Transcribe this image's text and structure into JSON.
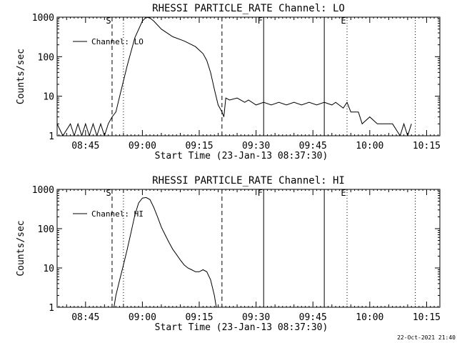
{
  "footer": {
    "timestamp": "22-Oct-2021 21:40"
  },
  "chart_data": [
    {
      "type": "line",
      "title": "RHESSI PARTICLE_RATE Channel: LO",
      "xlabel": "Start Time (23-Jan-13 08:37:30)",
      "ylabel": "Counts/sec",
      "yscale": "log",
      "ylim": [
        1,
        1000
      ],
      "xlim_minutes_after_start": [
        0,
        101
      ],
      "x_ticks": [
        "08:45",
        "09:00",
        "09:15",
        "09:30",
        "09:45",
        "10:00",
        "10:15"
      ],
      "y_ticks": [
        "1",
        "10",
        "100",
        "1000"
      ],
      "legend": {
        "label": "Channel: LO",
        "position": "top-left"
      },
      "markers": [
        {
          "label": "S",
          "time": "08:52",
          "style": "dashed"
        },
        {
          "label": "",
          "time": "08:55",
          "style": "dotted"
        },
        {
          "label": "",
          "time": "09:21",
          "style": "dashed"
        },
        {
          "label": "F",
          "time": "09:32",
          "style": "solid"
        },
        {
          "label": "",
          "time": "09:48",
          "style": "solid"
        },
        {
          "label": "E",
          "time": "09:54",
          "style": "dotted"
        },
        {
          "label": "",
          "time": "10:12",
          "style": "dotted"
        }
      ],
      "series": [
        {
          "name": "Channel: LO",
          "points": [
            [
              "08:37:30",
              2
            ],
            [
              "08:39",
              1
            ],
            [
              "08:41",
              2
            ],
            [
              "08:42",
              1
            ],
            [
              "08:43",
              2
            ],
            [
              "08:44",
              1
            ],
            [
              "08:45",
              2
            ],
            [
              "08:46",
              1
            ],
            [
              "08:47",
              2
            ],
            [
              "08:48",
              1
            ],
            [
              "08:49",
              2
            ],
            [
              "08:50",
              1
            ],
            [
              "08:51",
              2
            ],
            [
              "08:52",
              3
            ],
            [
              "08:53",
              4
            ],
            [
              "08:54",
              10
            ],
            [
              "08:56",
              60
            ],
            [
              "08:58",
              300
            ],
            [
              "09:00",
              800
            ],
            [
              "09:01",
              1000
            ],
            [
              "09:02",
              950
            ],
            [
              "09:03",
              800
            ],
            [
              "09:05",
              500
            ],
            [
              "09:08",
              320
            ],
            [
              "09:11",
              250
            ],
            [
              "09:14",
              180
            ],
            [
              "09:16",
              120
            ],
            [
              "09:17",
              80
            ],
            [
              "09:18",
              40
            ],
            [
              "09:19",
              15
            ],
            [
              "09:20",
              6
            ],
            [
              "09:21",
              4
            ],
            [
              "09:21:30",
              3
            ],
            [
              "09:22",
              9
            ],
            [
              "09:23",
              8
            ],
            [
              "09:25",
              9
            ],
            [
              "09:27",
              7
            ],
            [
              "09:28",
              8
            ],
            [
              "09:30",
              6
            ],
            [
              "09:32",
              7
            ],
            [
              "09:34",
              6
            ],
            [
              "09:36",
              7
            ],
            [
              "09:38",
              6
            ],
            [
              "09:40",
              7
            ],
            [
              "09:42",
              6
            ],
            [
              "09:44",
              7
            ],
            [
              "09:46",
              6
            ],
            [
              "09:48",
              7
            ],
            [
              "09:50",
              6
            ],
            [
              "09:51",
              7
            ],
            [
              "09:53",
              5
            ],
            [
              "09:54",
              7
            ],
            [
              "09:55",
              4
            ],
            [
              "09:57",
              4
            ],
            [
              "09:58",
              2
            ],
            [
              "10:00",
              3
            ],
            [
              "10:02",
              2
            ],
            [
              "10:04",
              2
            ],
            [
              "10:06",
              2
            ],
            [
              "10:08",
              1
            ],
            [
              "10:09",
              2
            ],
            [
              "10:10",
              1
            ],
            [
              "10:11",
              2
            ]
          ]
        }
      ]
    },
    {
      "type": "line",
      "title": "RHESSI PARTICLE_RATE Channel: HI",
      "xlabel": "Start Time (23-Jan-13 08:37:30)",
      "ylabel": "Counts/sec",
      "yscale": "log",
      "ylim": [
        1,
        1000
      ],
      "xlim_minutes_after_start": [
        0,
        101
      ],
      "x_ticks": [
        "08:45",
        "09:00",
        "09:15",
        "09:30",
        "09:45",
        "10:00",
        "10:15"
      ],
      "y_ticks": [
        "1",
        "10",
        "100",
        "1000"
      ],
      "legend": {
        "label": "Channel: HI",
        "position": "top-left"
      },
      "markers": [
        {
          "label": "S",
          "time": "08:52",
          "style": "dashed"
        },
        {
          "label": "",
          "time": "08:55",
          "style": "dotted"
        },
        {
          "label": "",
          "time": "09:21",
          "style": "dashed"
        },
        {
          "label": "F",
          "time": "09:32",
          "style": "solid"
        },
        {
          "label": "",
          "time": "09:48",
          "style": "solid"
        },
        {
          "label": "E",
          "time": "09:54",
          "style": "dotted"
        },
        {
          "label": "",
          "time": "10:12",
          "style": "dotted"
        }
      ],
      "series": [
        {
          "name": "Channel: HI",
          "points": [
            [
              "08:52:30",
              1
            ],
            [
              "08:53",
              2
            ],
            [
              "08:54",
              5
            ],
            [
              "08:55",
              12
            ],
            [
              "08:56",
              30
            ],
            [
              "08:57",
              80
            ],
            [
              "08:58",
              220
            ],
            [
              "08:59",
              450
            ],
            [
              "09:00",
              600
            ],
            [
              "09:01",
              620
            ],
            [
              "09:02",
              550
            ],
            [
              "09:03",
              350
            ],
            [
              "09:04",
              200
            ],
            [
              "09:05",
              110
            ],
            [
              "09:06",
              70
            ],
            [
              "09:07",
              45
            ],
            [
              "09:08",
              30
            ],
            [
              "09:09",
              22
            ],
            [
              "09:10",
              16
            ],
            [
              "09:11",
              12
            ],
            [
              "09:12",
              10
            ],
            [
              "09:13",
              9
            ],
            [
              "09:14",
              8
            ],
            [
              "09:15",
              8
            ],
            [
              "09:16",
              9
            ],
            [
              "09:17",
              8
            ],
            [
              "09:18",
              5
            ],
            [
              "09:19",
              2
            ],
            [
              "09:19:30",
              1
            ]
          ]
        }
      ]
    }
  ]
}
